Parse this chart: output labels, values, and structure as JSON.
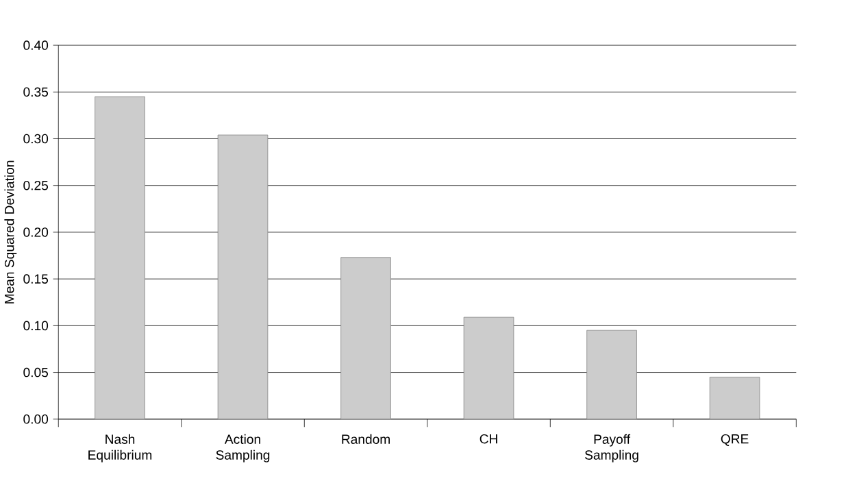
{
  "chart_data": {
    "type": "bar",
    "ylabel": "Mean Squared Deviation",
    "categories": [
      "Nash Equilibrium",
      "Action Sampling",
      "Random",
      "CH",
      "Payoff Sampling",
      "QRE"
    ],
    "values": [
      0.345,
      0.304,
      0.173,
      0.109,
      0.095,
      0.045
    ],
    "color": "#cccccc",
    "ylim": [
      0,
      0.4
    ],
    "yticks": [
      {
        "value": 0,
        "label": "0.00"
      },
      {
        "value": 0.05,
        "label": "0.05"
      },
      {
        "value": 0.1,
        "label": "0.10"
      },
      {
        "value": 0.15,
        "label": "0.15"
      },
      {
        "value": 0.2,
        "label": "0.20"
      },
      {
        "value": 0.25,
        "label": "0.25"
      },
      {
        "value": 0.3,
        "label": "0.30"
      },
      {
        "value": 0.35,
        "label": "0.35"
      },
      {
        "value": 0.4,
        "label": "0.40"
      }
    ],
    "grid": "y"
  }
}
